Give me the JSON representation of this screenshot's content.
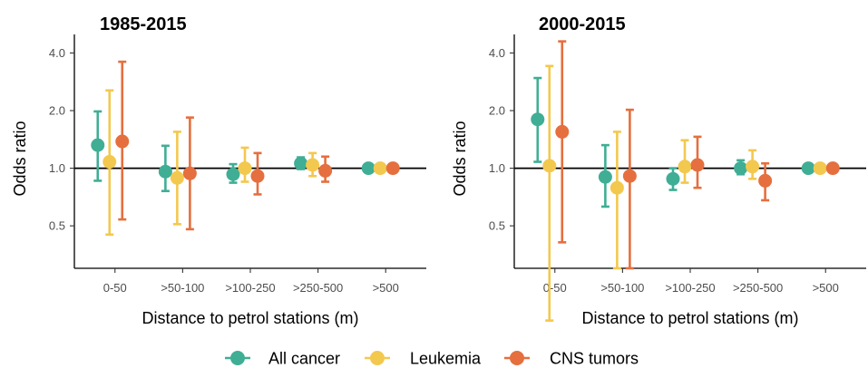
{
  "chart_data": [
    {
      "type": "scatter",
      "title": "1985-2015",
      "xlabel": "Distance to petrol stations (m)",
      "ylabel": "Odds ratio",
      "y_scale": "log",
      "ylim": [
        0.3,
        5.0
      ],
      "yticks": [
        0.5,
        1.0,
        2.0,
        4.0
      ],
      "ytick_labels": [
        "0.5",
        "1.0",
        "2.0",
        "4.0"
      ],
      "reference_line": 1.0,
      "categories": [
        "0-50",
        ">50-100",
        ">100-250",
        ">250-500",
        ">500"
      ],
      "series": [
        {
          "name": "All cancer",
          "color": "#3fae95",
          "values": [
            1.32,
            0.96,
            0.93,
            1.06,
            1.0
          ],
          "ci_low": [
            0.86,
            0.76,
            0.84,
            0.99,
            1.0
          ],
          "ci_high": [
            1.98,
            1.31,
            1.05,
            1.14,
            1.0
          ]
        },
        {
          "name": "Leukemia",
          "color": "#f3c84e",
          "values": [
            1.08,
            0.89,
            1.0,
            1.04,
            1.0
          ],
          "ci_low": [
            0.45,
            0.51,
            0.85,
            0.91,
            1.0
          ],
          "ci_high": [
            2.55,
            1.55,
            1.28,
            1.2,
            1.0
          ]
        },
        {
          "name": "CNS tumors",
          "color": "#e56f3e",
          "values": [
            1.38,
            0.94,
            0.91,
            0.97,
            1.0
          ],
          "ci_low": [
            0.54,
            0.48,
            0.73,
            0.85,
            1.0
          ],
          "ci_high": [
            3.6,
            1.84,
            1.2,
            1.15,
            1.0
          ]
        }
      ]
    },
    {
      "type": "scatter",
      "title": "2000-2015",
      "xlabel": "Distance to petrol stations (m)",
      "ylabel": "Odds ratio",
      "y_scale": "log",
      "ylim": [
        0.3,
        5.0
      ],
      "yticks": [
        0.5,
        1.0,
        2.0,
        4.0
      ],
      "ytick_labels": [
        "0.5",
        "1.0",
        "2.0",
        "4.0"
      ],
      "reference_line": 1.0,
      "categories": [
        "0-50",
        ">50-100",
        ">100-250",
        ">250-500",
        ">500"
      ],
      "series": [
        {
          "name": "All cancer",
          "color": "#3fae95",
          "values": [
            1.8,
            0.9,
            0.88,
            1.0,
            1.0
          ],
          "ci_low": [
            1.08,
            0.63,
            0.77,
            0.93,
            1.0
          ],
          "ci_high": [
            2.96,
            1.32,
            1.0,
            1.1,
            1.0
          ]
        },
        {
          "name": "Leukemia",
          "color": "#f3c84e",
          "values": [
            1.03,
            0.79,
            1.02,
            1.02,
            1.0
          ],
          "ci_low": [
            0.16,
            0.3,
            0.84,
            0.88,
            1.0
          ],
          "ci_high": [
            3.42,
            1.55,
            1.4,
            1.24,
            1.0
          ]
        },
        {
          "name": "CNS tumors",
          "color": "#e56f3e",
          "values": [
            1.55,
            0.91,
            1.04,
            0.86,
            1.0
          ],
          "ci_low": [
            0.41,
            0.3,
            0.79,
            0.68,
            1.0
          ],
          "ci_high": [
            4.6,
            2.02,
            1.46,
            1.06,
            1.0
          ]
        }
      ]
    }
  ],
  "legend": {
    "position": "bottom",
    "items": [
      {
        "label": "All cancer",
        "color": "#3fae95"
      },
      {
        "label": "Leukemia",
        "color": "#f3c84e"
      },
      {
        "label": "CNS tumors",
        "color": "#e56f3e"
      }
    ]
  }
}
